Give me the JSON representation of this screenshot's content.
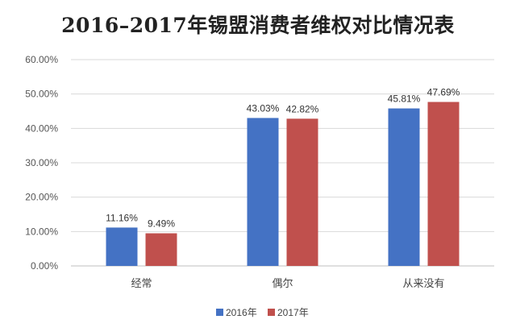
{
  "chart_data": {
    "type": "bar",
    "title": "2016–2017年锡盟消费者维权对比情况表",
    "categories": [
      "经常",
      "偶尔",
      "从来没有"
    ],
    "series": [
      {
        "name": "2016年",
        "values": [
          11.16,
          43.03,
          45.81
        ],
        "labels": [
          "11.16%",
          "43.03%",
          "45.81%"
        ],
        "color": "#4472c4"
      },
      {
        "name": "2017年",
        "values": [
          9.49,
          42.82,
          47.69
        ],
        "labels": [
          "9.49%",
          "42.82%",
          "47.69%"
        ],
        "color": "#c0504d"
      }
    ],
    "ylim": [
      0,
      60
    ],
    "yticks": [
      "0.00%",
      "10.00%",
      "20.00%",
      "30.00%",
      "40.00%",
      "50.00%",
      "60.00%"
    ],
    "grid": true,
    "legend": "bottom"
  }
}
